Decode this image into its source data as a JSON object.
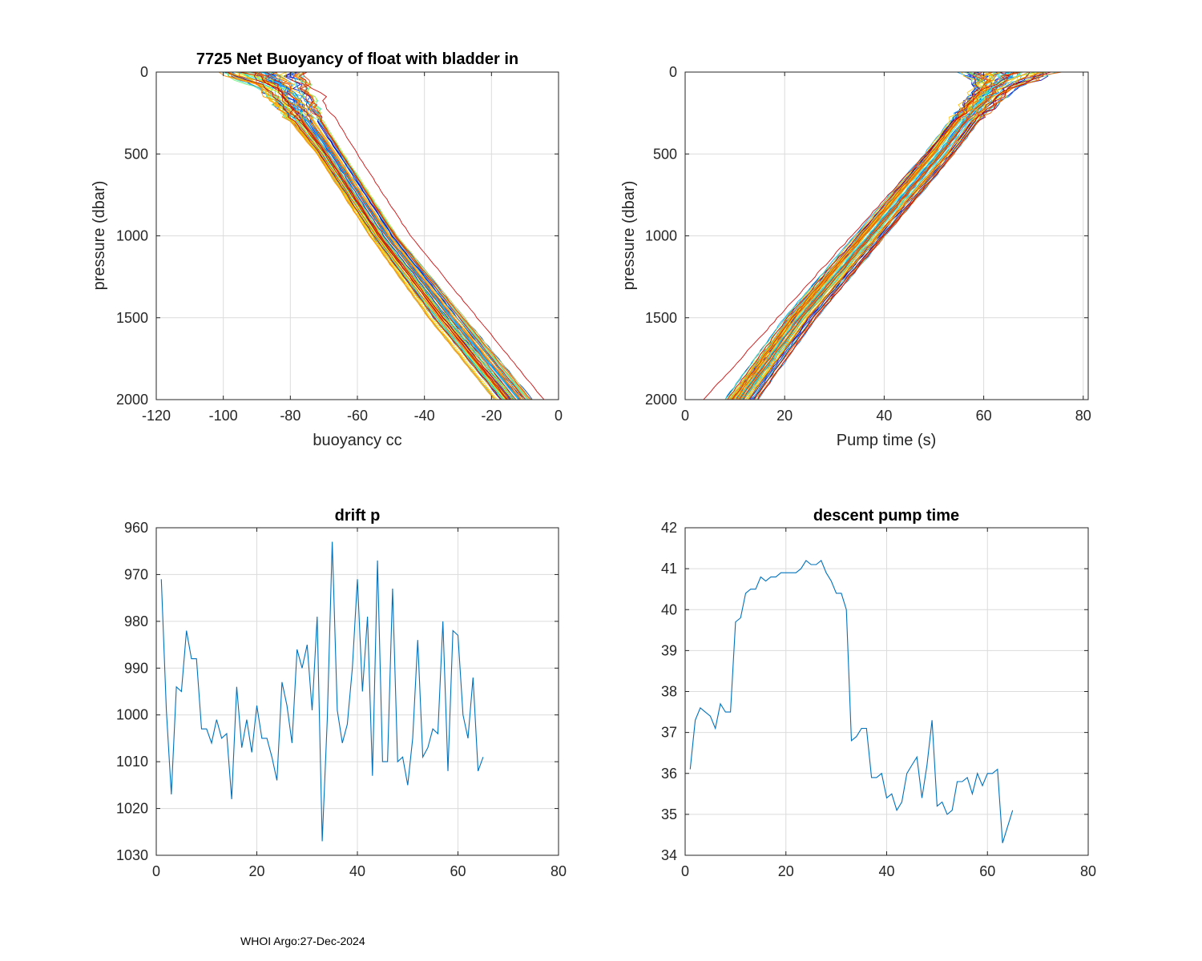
{
  "footer": "WHOI Argo:27-Dec-2024",
  "colors": {
    "line": "#0072BD",
    "grid": "#dcdcdc",
    "profile_palette": [
      "#0000b0",
      "#0010d8",
      "#0038f0",
      "#0070ff",
      "#00a8ff",
      "#10d0f0",
      "#40e8c0",
      "#80f080",
      "#c0f040",
      "#f0e000",
      "#ffc000",
      "#ff9000",
      "#f06000",
      "#e03000",
      "#c00000"
    ]
  },
  "chart_data": [
    {
      "id": "buoyancy",
      "type": "line",
      "title": "7725 Net Buoyancy of float with bladder in",
      "xlabel": "buoyancy cc",
      "ylabel": "pressure (dbar)",
      "xlim": [
        -120,
        0
      ],
      "ylim": [
        0,
        2000
      ],
      "y_reversed": true,
      "xticks": [
        "-120",
        "-100",
        "-80",
        "-60",
        "-40",
        "-20",
        "0"
      ],
      "yticks": [
        "0",
        "500",
        "1000",
        "1500",
        "2000"
      ],
      "profile_count": 65,
      "profile_envelope": {
        "pressure": [
          0,
          100,
          300,
          500,
          1000,
          1500,
          2000
        ],
        "center": [
          -88,
          -82,
          -75,
          -68,
          -52,
          -33,
          -13
        ],
        "spread": [
          12,
          7,
          5,
          4,
          4,
          5,
          5
        ],
        "outlier_center": [
          -78,
          -72,
          -66,
          -60,
          -44,
          -24,
          -4
        ]
      }
    },
    {
      "id": "pumptime",
      "type": "line",
      "xlabel": "Pump time (s)",
      "ylabel": "pressure (dbar)",
      "xlim": [
        0,
        81
      ],
      "ylim": [
        0,
        2000
      ],
      "y_reversed": true,
      "xticks": [
        "0",
        "20",
        "40",
        "60",
        "80"
      ],
      "yticks": [
        "0",
        "500",
        "1000",
        "1500",
        "2000"
      ],
      "profile_count": 65,
      "profile_envelope": {
        "pressure": [
          0,
          100,
          300,
          500,
          1000,
          1500,
          2000
        ],
        "center": [
          65,
          62,
          56,
          51,
          37,
          23,
          11
        ],
        "spread": [
          9,
          4,
          3,
          3,
          3,
          3,
          3
        ],
        "outlier_center": [
          64,
          60,
          54,
          48,
          33,
          18,
          3
        ]
      }
    },
    {
      "id": "driftp",
      "type": "line",
      "title": "drift p",
      "xlim": [
        0,
        80
      ],
      "ylim": [
        960,
        1030
      ],
      "y_reversed": true,
      "xticks": [
        "0",
        "20",
        "40",
        "60",
        "80"
      ],
      "yticks": [
        "960",
        "970",
        "980",
        "990",
        "1000",
        "1010",
        "1020",
        "1030"
      ],
      "series": [
        {
          "name": "drift p",
          "x": [
            1,
            2,
            3,
            4,
            5,
            6,
            7,
            8,
            9,
            10,
            11,
            12,
            13,
            14,
            15,
            16,
            17,
            18,
            19,
            20,
            21,
            22,
            23,
            24,
            25,
            26,
            27,
            28,
            29,
            30,
            31,
            32,
            33,
            34,
            35,
            36,
            37,
            38,
            39,
            40,
            41,
            42,
            43,
            44,
            45,
            46,
            47,
            48,
            49,
            50,
            51,
            52,
            53,
            54,
            55,
            56,
            57,
            58,
            59,
            60,
            61,
            62,
            63,
            64,
            65
          ],
          "values": [
            971,
            999,
            1017,
            994,
            995,
            982,
            988,
            988,
            1003,
            1003,
            1006,
            1001,
            1005,
            1004,
            1018,
            994,
            1007,
            1001,
            1008,
            998,
            1005,
            1005,
            1009,
            1014,
            993,
            998,
            1006,
            986,
            990,
            985,
            999,
            979,
            1027,
            1001,
            963,
            999,
            1006,
            1002,
            990,
            971,
            995,
            979,
            1013,
            967,
            1010,
            1010,
            973,
            1010,
            1009,
            1015,
            1005,
            984,
            1009,
            1007,
            1003,
            1004,
            980,
            1012,
            982,
            983,
            1000,
            1005,
            992,
            1012,
            1009
          ]
        }
      ]
    },
    {
      "id": "pumpdescent",
      "type": "line",
      "title": "descent pump time",
      "xlim": [
        0,
        80
      ],
      "ylim": [
        34,
        42
      ],
      "y_reversed": false,
      "xticks": [
        "0",
        "20",
        "40",
        "60",
        "80"
      ],
      "yticks": [
        "34",
        "35",
        "36",
        "37",
        "38",
        "39",
        "40",
        "41",
        "42"
      ],
      "series": [
        {
          "name": "descent pump time",
          "x": [
            1,
            2,
            3,
            4,
            5,
            6,
            7,
            8,
            9,
            10,
            11,
            12,
            13,
            14,
            15,
            16,
            17,
            18,
            19,
            20,
            21,
            22,
            23,
            24,
            25,
            26,
            27,
            28,
            29,
            30,
            31,
            32,
            33,
            34,
            35,
            36,
            37,
            38,
            39,
            40,
            41,
            42,
            43,
            44,
            45,
            46,
            47,
            48,
            49,
            50,
            51,
            52,
            53,
            54,
            55,
            56,
            57,
            58,
            59,
            60,
            61,
            62,
            63,
            64,
            65
          ],
          "values": [
            36.1,
            37.3,
            37.6,
            37.5,
            37.4,
            37.1,
            37.7,
            37.5,
            37.5,
            39.7,
            39.8,
            40.4,
            40.5,
            40.5,
            40.8,
            40.7,
            40.8,
            40.8,
            40.9,
            40.9,
            40.9,
            40.9,
            41.0,
            41.2,
            41.1,
            41.1,
            41.2,
            40.9,
            40.7,
            40.4,
            40.4,
            40.0,
            36.8,
            36.9,
            37.1,
            37.1,
            35.9,
            35.9,
            36.0,
            35.4,
            35.5,
            35.1,
            35.3,
            36.0,
            36.2,
            36.4,
            35.4,
            36.2,
            37.3,
            35.2,
            35.3,
            35.0,
            35.1,
            35.8,
            35.8,
            35.9,
            35.5,
            36.0,
            35.7,
            36.0,
            36.0,
            36.1,
            34.3,
            34.7,
            35.1
          ]
        }
      ]
    }
  ]
}
